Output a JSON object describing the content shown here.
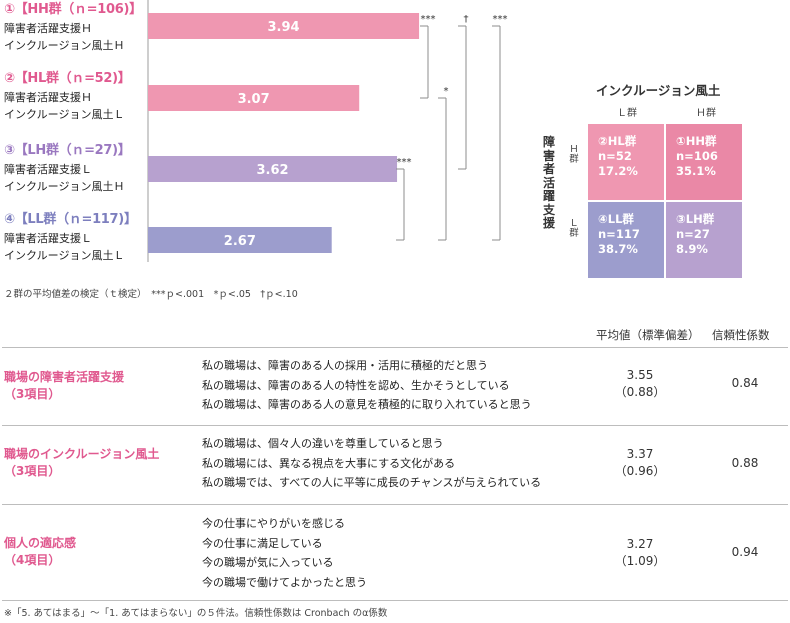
{
  "chart_data": {
    "type": "bar",
    "orientation": "horizontal",
    "groups": [
      {
        "title": "①【HH群（ｎ=106)】",
        "line1": "障害者活躍支援Ｈ",
        "line2": "インクルージョン風土Ｈ",
        "value": 3.94,
        "label": "3.94",
        "color": "#ef97b1"
      },
      {
        "title": "②【HL群（ｎ=52)】",
        "line1": "障害者活躍支援Ｈ",
        "line2": "インクルージョン風土Ｌ",
        "value": 3.07,
        "label": "3.07",
        "color": "#ef97b1"
      },
      {
        "title": "③【LH群（ｎ=27)】",
        "line1": "障害者活躍支援Ｌ",
        "line2": "インクルージョン風土Ｈ",
        "value": 3.62,
        "label": "3.62",
        "color": "#b7a1cf"
      },
      {
        "title": "④【LL群（ｎ=117)】",
        "line1": "障害者活躍支援Ｌ",
        "line2": "インクルージョン風土Ｌ",
        "value": 2.67,
        "label": "2.67",
        "color": "#9c9dcd"
      }
    ],
    "title_colors": [
      "#e0598f",
      "#e0598f",
      "#9a78c0",
      "#7d7fbe"
    ],
    "significance": [
      {
        "from": 0,
        "to": 1,
        "mark": "***"
      },
      {
        "from": 1,
        "to": 3,
        "mark": "*"
      },
      {
        "from": 2,
        "to": 3,
        "mark": "***"
      },
      {
        "from": 0,
        "to": 2,
        "mark": "†"
      },
      {
        "from": 0,
        "to": 3,
        "mark": "***"
      }
    ],
    "footnote": "２群の平均値差の検定（ｔ検定）　***ｐ<.001　*ｐ<.05　†ｐ<.10"
  },
  "matrix": {
    "title": "インクルージョン風土",
    "col_labels": [
      "Ｌ群",
      "Ｈ群"
    ],
    "row_axis_label": "障害者活躍支援",
    "row_labels": [
      "Ｈ群",
      "Ｌ群"
    ],
    "cells": [
      {
        "label": "②HL群",
        "n": "n=52",
        "pct": "17.2%",
        "color": "#ef97b1"
      },
      {
        "label": "①HH群",
        "n": "n=106",
        "pct": "35.1%",
        "color": "#ea88a6"
      },
      {
        "label": "④LL群",
        "n": "n=117",
        "pct": "38.7%",
        "color": "#9c9dcd"
      },
      {
        "label": "③LH群",
        "n": "n=27",
        "pct": "8.9%",
        "color": "#b7a1cf"
      }
    ]
  },
  "table": {
    "header_mean": "平均値（標準偏差）",
    "header_rel": "信頼性係数",
    "rows": [
      {
        "cat1": "職場の障害者活躍支援",
        "cat2": "（3項目）",
        "items": [
          "私の職場は、障害のある人の採用・活用に積極的だと思う",
          "私の職場は、障害のある人の特性を認め、生かそうとしている",
          "私の職場は、障害のある人の意見を積極的に取り入れていると思う"
        ],
        "mean": "3.55",
        "sd": "（0.88）",
        "rel": "0.84"
      },
      {
        "cat1": "職場のインクルージョン風土",
        "cat2": "（3項目）",
        "items": [
          "私の職場は、個々人の違いを尊重していると思う",
          "私の職場には、異なる視点を大事にする文化がある",
          "私の職場では、すべての人に平等に成長のチャンスが与えられている"
        ],
        "mean": "3.37",
        "sd": "（0.96）",
        "rel": "0.88"
      },
      {
        "cat1": "個人の適応感",
        "cat2": "（4項目）",
        "items": [
          "今の仕事にやりがいを感じる",
          "今の仕事に満足している",
          "今の職場が気に入っている",
          "今の職場で働けてよかったと思う"
        ],
        "mean": "3.27",
        "sd": "（1.09）",
        "rel": "0.94"
      }
    ],
    "footnote": "※「5. あてはまる」～「1. あてはまらない」の５件法。信頼性係数は Cronbach のα係数"
  }
}
